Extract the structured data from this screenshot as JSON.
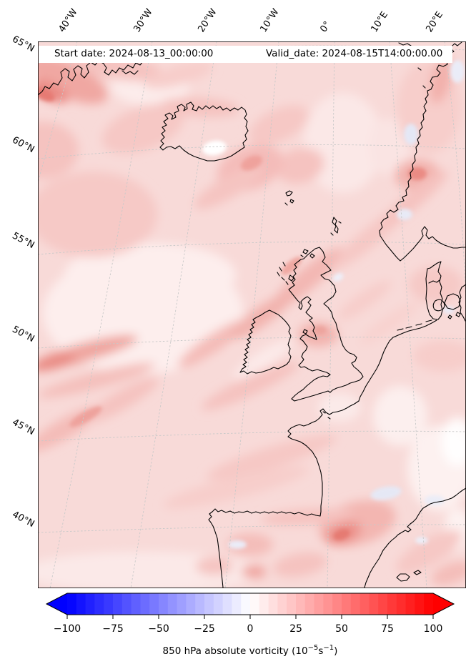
{
  "header": {
    "start_date": "Start date: 2024-08-13_00:00:00",
    "valid_date": "Valid_date: 2024-08-15T14:00:00.00"
  },
  "axes": {
    "top_labels": [
      "40°W",
      "30°W",
      "20°W",
      "10°W",
      "0°",
      "10°E",
      "20°E"
    ],
    "left_labels": [
      "65°N",
      "60°N",
      "55°N",
      "50°N",
      "45°N",
      "40°N"
    ]
  },
  "colorbar": {
    "tick_labels": [
      "−100",
      "−75",
      "−50",
      "−25",
      "0",
      "25",
      "50",
      "75",
      "100"
    ],
    "label": {
      "pre": "850 hPa absolute vorticity (10",
      "sup1": "−5",
      "mid": "s",
      "sup2": "−1",
      "post": ")"
    }
  },
  "colors": {
    "coastline": "#000000",
    "graticule": "#c9c9c9",
    "field_base": "#f8dad8",
    "negative_end": "#0000ff",
    "positive_end": "#ff0000",
    "frame": "#000000"
  },
  "chart_data": {
    "type": "heatmap",
    "title": "",
    "variable": "850 hPa absolute vorticity",
    "units": "10^-5 s^-1",
    "start_date": "2024-08-13_00:00:00",
    "valid_date": "2024-08-15T14:00:00.00",
    "region": "North Atlantic / Western Europe (Greenland, Iceland, Norway, British Isles, France, Iberia)",
    "lon_ticks_deg": [
      -40,
      -30,
      -20,
      -10,
      0,
      10,
      20
    ],
    "lat_ticks_deg": [
      65,
      60,
      55,
      50,
      45,
      40
    ],
    "colorbar": {
      "cmap": "bwr",
      "vmin": -100,
      "vmax": 100,
      "tick_step": 25,
      "level_step": 5,
      "extend": "both",
      "ticks": [
        -100,
        -75,
        -50,
        -25,
        0,
        25,
        50,
        75,
        100
      ]
    },
    "field_summary": "Field is mostly weak positive vorticity (≈5–40) giving pale pink shading; elongated SW–NE filament bands cross the domain; local maxima (≈50–80) along the SE Greenland coast, SE of Iceland, in a band from the mid-Atlantic across Ireland/Scotland, on the Norwegian coast near 62N, and over NE Spain; small negative (bluish) patches near the Norwegian coast, S France and NE Iberia; near-zero (white) spots over central Iceland and west of the Bay of Biscay."
  }
}
